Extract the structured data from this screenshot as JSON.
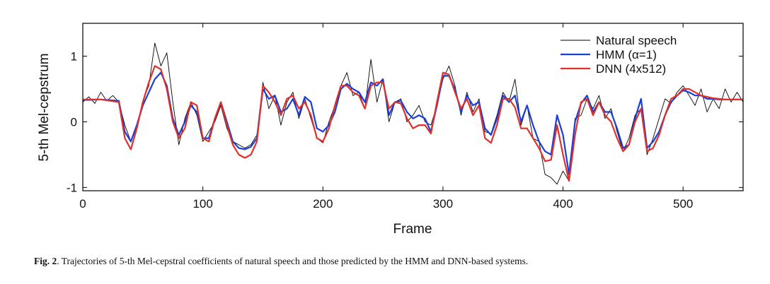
{
  "chart_data": {
    "type": "line",
    "xlabel": "Frame",
    "ylabel": "5-th Mel-cepstrum",
    "xlim": [
      0,
      550
    ],
    "ylim": [
      -1.05,
      1.5
    ],
    "xticks": [
      0,
      100,
      200,
      300,
      400,
      500
    ],
    "xtick_labels": [
      "0",
      "100",
      "200",
      "300",
      "400",
      "500"
    ],
    "yticks": [
      -1,
      0,
      1
    ],
    "ytick_labels": [
      "-1",
      "0",
      "1"
    ],
    "grid": false,
    "legend_position": "top-right",
    "series": [
      {
        "name": "Natural speech",
        "color": "#000000",
        "x": [
          0,
          5,
          10,
          15,
          20,
          25,
          30,
          35,
          40,
          45,
          50,
          55,
          60,
          65,
          70,
          75,
          80,
          85,
          90,
          95,
          100,
          105,
          110,
          115,
          120,
          125,
          130,
          135,
          140,
          145,
          150,
          155,
          160,
          165,
          170,
          175,
          180,
          185,
          190,
          195,
          200,
          205,
          210,
          215,
          220,
          225,
          230,
          235,
          240,
          245,
          250,
          255,
          260,
          265,
          270,
          275,
          280,
          285,
          290,
          295,
          300,
          305,
          310,
          315,
          320,
          325,
          330,
          335,
          340,
          345,
          350,
          355,
          360,
          365,
          370,
          375,
          380,
          385,
          390,
          395,
          400,
          405,
          410,
          415,
          420,
          425,
          430,
          435,
          440,
          445,
          450,
          455,
          460,
          465,
          470,
          475,
          480,
          485,
          490,
          495,
          500,
          505,
          510,
          515,
          520,
          525,
          530,
          535,
          540,
          545,
          550
        ],
        "y": [
          0.3,
          0.38,
          0.28,
          0.45,
          0.32,
          0.4,
          0.3,
          -0.05,
          -0.3,
          -0.08,
          0.32,
          0.55,
          1.2,
          0.85,
          1.05,
          0.3,
          -0.35,
          0.05,
          0.3,
          0.1,
          -0.3,
          -0.15,
          0.0,
          0.25,
          -0.1,
          -0.3,
          -0.35,
          -0.4,
          -0.35,
          -0.2,
          0.6,
          0.2,
          0.4,
          -0.05,
          0.3,
          0.45,
          0.05,
          0.35,
          0.05,
          -0.25,
          -0.32,
          0.0,
          0.25,
          0.55,
          0.75,
          0.4,
          0.45,
          0.2,
          0.95,
          0.3,
          0.65,
          0.0,
          0.3,
          0.35,
          0.0,
          0.1,
          0.25,
          0.0,
          -0.05,
          0.25,
          0.65,
          0.85,
          0.55,
          0.1,
          0.45,
          0.15,
          0.35,
          -0.15,
          -0.18,
          0.1,
          0.45,
          0.3,
          0.65,
          -0.05,
          0.25,
          -0.25,
          -0.3,
          -0.8,
          -0.85,
          -0.95,
          -0.75,
          -0.9,
          0.05,
          0.1,
          0.35,
          0.2,
          0.4,
          0.05,
          0.2,
          -0.15,
          -0.45,
          -0.25,
          0.1,
          0.2,
          -0.5,
          -0.25,
          0.05,
          0.35,
          0.28,
          0.45,
          0.55,
          0.4,
          0.25,
          0.5,
          0.15,
          0.35,
          0.2,
          0.5,
          0.3,
          0.45,
          0.3
        ]
      },
      {
        "name": "HMM (α=1)",
        "color": "#1a3fd6",
        "x": [
          0,
          15,
          30,
          35,
          40,
          45,
          50,
          55,
          60,
          65,
          70,
          75,
          80,
          85,
          90,
          95,
          100,
          105,
          110,
          115,
          120,
          125,
          130,
          135,
          140,
          145,
          150,
          155,
          160,
          165,
          170,
          175,
          180,
          185,
          190,
          195,
          200,
          205,
          210,
          215,
          220,
          225,
          230,
          235,
          240,
          245,
          250,
          255,
          260,
          265,
          270,
          275,
          280,
          285,
          290,
          295,
          300,
          305,
          310,
          315,
          320,
          325,
          330,
          335,
          340,
          345,
          350,
          355,
          360,
          365,
          370,
          375,
          380,
          385,
          390,
          395,
          400,
          405,
          410,
          415,
          420,
          425,
          430,
          435,
          440,
          445,
          450,
          455,
          460,
          465,
          470,
          475,
          480,
          485,
          490,
          495,
          500,
          505,
          510,
          515,
          520,
          525,
          530,
          535,
          540,
          545,
          550
        ],
        "y": [
          0.33,
          0.34,
          0.32,
          -0.15,
          -0.3,
          -0.05,
          0.25,
          0.45,
          0.65,
          0.75,
          0.55,
          0.05,
          -0.2,
          0.0,
          0.25,
          0.15,
          -0.25,
          -0.25,
          0.05,
          0.3,
          0.0,
          -0.3,
          -0.4,
          -0.42,
          -0.38,
          -0.25,
          0.5,
          0.35,
          0.4,
          0.15,
          0.2,
          0.35,
          0.1,
          0.38,
          0.3,
          -0.1,
          -0.15,
          -0.05,
          0.15,
          0.5,
          0.58,
          0.5,
          0.45,
          0.3,
          0.6,
          0.55,
          0.65,
          0.1,
          0.3,
          0.32,
          0.15,
          0.05,
          0.1,
          0.05,
          -0.15,
          0.25,
          0.7,
          0.7,
          0.5,
          0.15,
          0.4,
          0.25,
          0.3,
          -0.1,
          -0.2,
          0.05,
          0.4,
          0.3,
          0.4,
          0.0,
          0.25,
          -0.05,
          -0.3,
          -0.45,
          -0.5,
          0.1,
          -0.2,
          -0.8,
          0.0,
          0.28,
          0.4,
          0.15,
          0.3,
          0.15,
          0.15,
          -0.1,
          -0.4,
          -0.35,
          0.05,
          0.35,
          -0.4,
          -0.3,
          -0.15,
          0.1,
          0.3,
          0.4,
          0.48,
          0.45,
          0.4,
          0.4,
          0.35,
          0.35,
          0.34,
          0.34,
          0.34,
          0.34,
          0.34
        ]
      },
      {
        "name": "DNN (4x512)",
        "color": "#e0302a",
        "x": [
          0,
          15,
          30,
          35,
          40,
          45,
          50,
          55,
          60,
          65,
          70,
          75,
          80,
          85,
          90,
          95,
          100,
          105,
          110,
          115,
          120,
          125,
          130,
          135,
          140,
          145,
          150,
          155,
          160,
          165,
          170,
          175,
          180,
          185,
          190,
          195,
          200,
          205,
          210,
          215,
          220,
          225,
          230,
          235,
          240,
          245,
          250,
          255,
          260,
          265,
          270,
          275,
          280,
          285,
          290,
          295,
          300,
          305,
          310,
          315,
          320,
          325,
          330,
          335,
          340,
          345,
          350,
          355,
          360,
          365,
          370,
          375,
          380,
          385,
          390,
          395,
          400,
          405,
          410,
          415,
          420,
          425,
          430,
          435,
          440,
          445,
          450,
          455,
          460,
          465,
          470,
          475,
          480,
          485,
          490,
          495,
          500,
          505,
          510,
          515,
          520,
          525,
          530,
          535,
          540,
          545,
          550
        ],
        "y": [
          0.34,
          0.34,
          0.3,
          -0.25,
          -0.42,
          -0.1,
          0.3,
          0.6,
          0.85,
          0.8,
          0.5,
          0.0,
          -0.25,
          -0.1,
          0.3,
          0.25,
          -0.25,
          -0.3,
          0.05,
          0.3,
          -0.05,
          -0.35,
          -0.5,
          -0.55,
          -0.5,
          -0.3,
          0.55,
          0.45,
          0.3,
          0.1,
          0.35,
          0.4,
          0.2,
          0.3,
          0.1,
          -0.25,
          -0.3,
          -0.1,
          0.25,
          0.55,
          0.55,
          0.45,
          0.4,
          0.2,
          0.55,
          0.6,
          0.6,
          0.2,
          0.3,
          0.28,
          0.05,
          -0.1,
          -0.05,
          -0.05,
          -0.18,
          0.3,
          0.75,
          0.72,
          0.45,
          0.2,
          0.35,
          0.1,
          0.25,
          -0.25,
          -0.32,
          -0.05,
          0.35,
          0.35,
          0.22,
          -0.1,
          -0.1,
          -0.25,
          -0.4,
          -0.6,
          -0.58,
          -0.05,
          -0.5,
          -0.9,
          -0.2,
          0.3,
          0.35,
          0.1,
          0.3,
          0.1,
          0.0,
          -0.25,
          -0.45,
          -0.35,
          0.0,
          0.2,
          -0.45,
          -0.4,
          -0.2,
          0.1,
          0.35,
          0.4,
          0.5,
          0.5,
          0.45,
          0.4,
          0.38,
          0.36,
          0.35,
          0.34,
          0.34,
          0.34,
          0.34
        ]
      }
    ]
  },
  "caption": {
    "label": "Fig. 2",
    "text": ".  Trajectories of 5-th Mel-cepstral coefficients of natural speech and those predicted by the HMM and DNN-based systems."
  }
}
